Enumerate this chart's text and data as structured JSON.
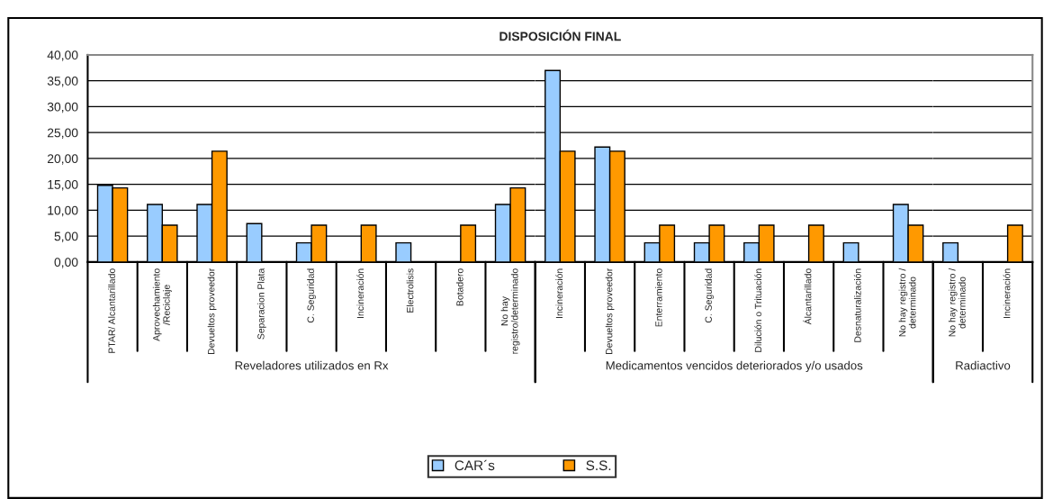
{
  "chart_data": [
    {
      "type": "bar",
      "title": "DISPOSICIÓN FINAL",
      "xlabel": "Reveladores utilizados en Rx",
      "categories": [
        "PTAR/ Alcantarillado",
        "Aprovechamiento\n/Reciclaje",
        "Devueltos proveedor",
        "Separacion Plata",
        "C. Seguridad",
        "Incineración",
        "Electrolisis",
        "Botadero",
        "No hay\nregistro/determinado"
      ],
      "series": [
        {
          "name": "CAR´s",
          "color": "#99ccff",
          "values": [
            14.8,
            11.1,
            11.1,
            7.4,
            3.7,
            null,
            3.7,
            null,
            11.1
          ]
        },
        {
          "name": "S.S.",
          "color": "#ff9900",
          "values": [
            14.3,
            7.1,
            21.4,
            null,
            7.1,
            7.1,
            null,
            7.1,
            14.3
          ]
        }
      ],
      "ylim": [
        0,
        40
      ],
      "yticks": [
        {
          "value": 0,
          "label": "0,00"
        },
        {
          "value": 5,
          "label": "5,00"
        },
        {
          "value": 10,
          "label": "10,00"
        },
        {
          "value": 15,
          "label": "15,00"
        },
        {
          "value": 20,
          "label": "20,00"
        },
        {
          "value": 25,
          "label": "25,00"
        },
        {
          "value": 30,
          "label": "30,00"
        },
        {
          "value": 35,
          "label": "35,00"
        },
        {
          "value": 40,
          "label": "40,00"
        }
      ],
      "grid": "y",
      "legend": "bottom"
    },
    {
      "type": "bar",
      "xlabel": "Medicamentos vencidos deteriorados y/o usados",
      "categories": [
        "Incineración",
        "Devueltos proveedor",
        "Enterramiento",
        "C. Seguridad",
        "Dilución o Trituación",
        "Álcantarillado",
        "Desnaturalización",
        "No hay registro /\ndeterminado"
      ],
      "series": [
        {
          "color": "#99ccff",
          "values": [
            37.0,
            22.2,
            3.7,
            3.7,
            3.7,
            null,
            3.7,
            11.1
          ]
        },
        {
          "color": "#ff9900",
          "values": [
            21.4,
            21.4,
            7.1,
            7.1,
            7.1,
            7.1,
            null,
            7.1
          ]
        }
      ],
      "ylim": [
        0,
        40
      ],
      "yticks": [
        {
          "value": 0,
          "label": null
        },
        {
          "value": 5,
          "label": null
        },
        {
          "value": 10,
          "label": null
        },
        {
          "value": 15,
          "label": null
        },
        {
          "value": 20,
          "label": null
        },
        {
          "value": 25,
          "label": null
        },
        {
          "value": 30,
          "label": null
        },
        {
          "value": 35,
          "label": null
        },
        {
          "value": 40,
          "label": null
        }
      ],
      "grid": "y",
      "tick_labels": "x"
    },
    {
      "type": "bar",
      "xlabel": "Radiactivo",
      "categories": [
        "No hay registro /\ndeterminado",
        "Incineración"
      ],
      "series": [
        {
          "color": "#99ccff",
          "values": [
            3.7,
            null
          ]
        },
        {
          "color": "#ff9900",
          "values": [
            null,
            7.1
          ]
        }
      ],
      "ylim": [
        0,
        40
      ],
      "yticks": [
        {
          "value": 0,
          "label": null
        },
        {
          "value": 5,
          "label": null
        },
        {
          "value": 10,
          "label": null
        },
        {
          "value": 15,
          "label": null
        },
        {
          "value": 20,
          "label": null
        },
        {
          "value": 25,
          "label": null
        },
        {
          "value": 30,
          "label": null
        },
        {
          "value": 35,
          "label": null
        },
        {
          "value": 40,
          "label": null
        }
      ],
      "grid": "y",
      "tick_labels": "x"
    }
  ]
}
